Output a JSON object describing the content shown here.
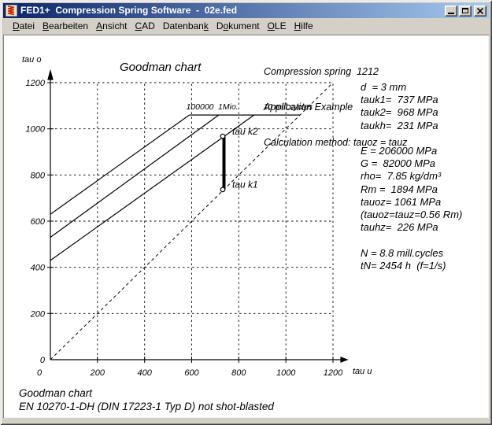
{
  "window": {
    "title": "FED1+  Compression Spring Software  -  02e.fed",
    "icons": {
      "app": "spring-coil-icon",
      "minimize": "minimize-icon",
      "maximize": "maximize-icon",
      "close": "close-icon"
    }
  },
  "colors": {
    "titlebar_gradient_left": "#0A246A",
    "titlebar_gradient_right": "#A6CAF0",
    "chrome": "#D4D0C8",
    "chart_ink": "#000000",
    "app_icon_red": "#CC2200",
    "app_icon_bg": "#F0E8C0"
  },
  "menu": {
    "items": [
      {
        "label": "Datei",
        "underline": 0
      },
      {
        "label": "Bearbeiten",
        "underline": 0
      },
      {
        "label": "Ansicht",
        "underline": 0
      },
      {
        "label": "CAD",
        "underline": 0
      },
      {
        "label": "Datenbank",
        "underline": 8
      },
      {
        "label": "Dokument",
        "underline": 1
      },
      {
        "label": "OLE",
        "underline": 0
      },
      {
        "label": "Hilfe",
        "underline": 0
      }
    ]
  },
  "header": {
    "line1": "Compression spring  1212",
    "line2": "Application Example",
    "line3": "Calculation method: tauoz = tauz"
  },
  "results_block": {
    "lines": [
      "d  = 3 mm",
      "tauk1=  737 MPa",
      "tauk2=  968 MPa",
      "taukh=  231 MPa",
      "",
      "E = 206000 MPa",
      "G =  82000 MPa",
      "rho=  7.85 kg/dm³",
      "Rm =  1894 MPa",
      "tauoz= 1061 MPa",
      "(tauoz=tauz=0.56 Rm)",
      "tauhz=  226 MPa",
      "",
      "N = 8.8 mill.cycles",
      "tN= 2454 h  (f=1/s)"
    ]
  },
  "captions": {
    "line1": "Goodman chart",
    "line2": "EN 10270-1-DH (DIN 17223-1 Typ D) not shot-blasted"
  },
  "chart_data": {
    "type": "line",
    "title": "Goodman chart",
    "xlabel": "tau u",
    "ylabel": "tau o",
    "xlim": [
      0,
      1200
    ],
    "ylim": [
      0,
      1200
    ],
    "xticks": [
      0,
      200,
      400,
      600,
      800,
      1000,
      1200
    ],
    "yticks": [
      0,
      200,
      400,
      600,
      800,
      1000,
      1200
    ],
    "grid": "dashed",
    "series": [
      {
        "name": "fatigue-line-100000-cycles",
        "style": "solid",
        "points": [
          [
            0,
            630
          ],
          [
            590,
            1060
          ]
        ]
      },
      {
        "name": "fatigue-line-1mio-cycles",
        "style": "solid",
        "points": [
          [
            0,
            530
          ],
          [
            715,
            1060
          ]
        ]
      },
      {
        "name": "fatigue-line-10mill-cycles",
        "style": "solid",
        "points": [
          [
            0,
            430
          ],
          [
            865,
            1060
          ]
        ]
      },
      {
        "name": "tauoz-upper-limit",
        "style": "solid",
        "points": [
          [
            590,
            1060
          ],
          [
            1060,
            1060
          ]
        ]
      },
      {
        "name": "static-diagonal-tauo-equals-tauu",
        "style": "dashed",
        "points": [
          [
            0,
            0
          ],
          [
            1200,
            1200
          ]
        ]
      },
      {
        "name": "working-stress-range-bar",
        "style": "solid-thick",
        "points": [
          [
            737,
            737
          ],
          [
            737,
            968
          ]
        ]
      }
    ],
    "markers": [
      {
        "x": 737,
        "y": 968
      },
      {
        "x": 737,
        "y": 737
      }
    ],
    "annotations": [
      {
        "text": "100000",
        "x": 635,
        "y": 1084,
        "align": "middle",
        "size": "small"
      },
      {
        "text": "1Mio.",
        "x": 755,
        "y": 1084,
        "align": "middle",
        "size": "small"
      },
      {
        "text": "10 mill.cycles",
        "x": 1009,
        "y": 1084,
        "align": "middle",
        "size": "small"
      },
      {
        "text": "tau k2",
        "x": 772,
        "y": 975,
        "align": "start",
        "size": "normal"
      },
      {
        "text": "tau k1",
        "x": 772,
        "y": 745,
        "align": "start",
        "size": "normal"
      }
    ]
  }
}
